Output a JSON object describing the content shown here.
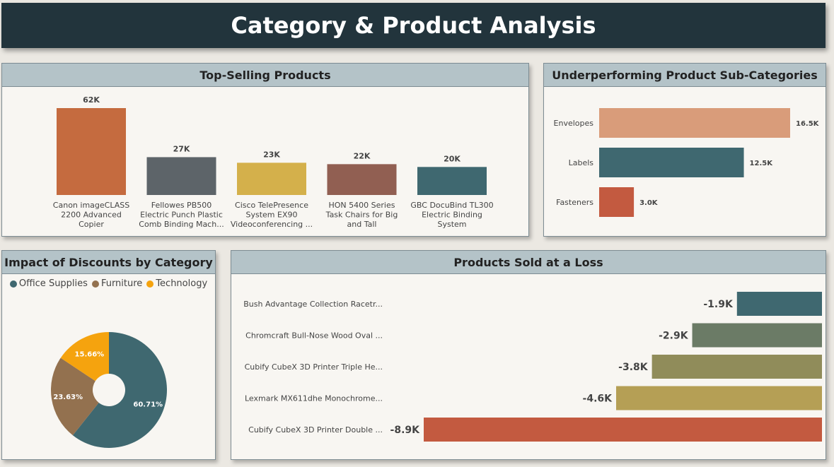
{
  "header": {
    "title": "Category & Product Analysis"
  },
  "panels": {
    "top_selling": {
      "title": "Top-Selling Products"
    },
    "underperforming": {
      "title": "Underperforming Product Sub-Categories"
    },
    "discounts": {
      "title": "Impact of Discounts by Category"
    },
    "loss": {
      "title": "Products Sold at a Loss"
    }
  },
  "chart_data": [
    {
      "id": "top_selling",
      "type": "bar",
      "title": "Top-Selling Products",
      "categories": [
        [
          "Canon imageCLASS",
          "2200 Advanced",
          "Copier"
        ],
        [
          "Fellowes PB500",
          "Electric Punch Plastic",
          "Comb Binding Mach..."
        ],
        [
          "Cisco TelePresence",
          "System EX90",
          "Videoconferencing ..."
        ],
        [
          "HON 5400 Series",
          "Task Chairs for Big",
          "and Tall"
        ],
        [
          "GBC DocuBind TL300",
          "Electric Binding",
          "System"
        ]
      ],
      "values": [
        62000,
        27000,
        23000,
        22000,
        20000
      ],
      "labels": [
        "62K",
        "27K",
        "23K",
        "22K",
        "20K"
      ],
      "colors": [
        "#c56b3f",
        "#5d6469",
        "#d4b04b",
        "#915f52",
        "#3f6870"
      ],
      "ylim": [
        0,
        62000
      ]
    },
    {
      "id": "underperforming",
      "type": "bar",
      "orientation": "horizontal",
      "title": "Underperforming Product Sub-Categories",
      "categories": [
        "Envelopes",
        "Labels",
        "Fasteners"
      ],
      "values": [
        16500,
        12500,
        3000
      ],
      "labels": [
        "16.5K",
        "12.5K",
        "3.0K"
      ],
      "colors": [
        "#d99c7a",
        "#3f6870",
        "#c35a40"
      ],
      "xlim": [
        0,
        16500
      ]
    },
    {
      "id": "discounts",
      "type": "pie",
      "title": "Impact of Discounts by Category",
      "legend": "top",
      "categories": [
        "Office Supplies",
        "Furniture",
        "Technology"
      ],
      "values": [
        60.71,
        23.63,
        15.66
      ],
      "labels": [
        "60.71%",
        "23.63%",
        "15.66%"
      ],
      "colors": [
        "#3f6870",
        "#93714f",
        "#f5a30e"
      ]
    },
    {
      "id": "loss",
      "type": "bar",
      "orientation": "horizontal",
      "title": "Products Sold at a Loss",
      "categories": [
        "Bush Advantage Collection Racetr...",
        "Chromcraft Bull-Nose Wood Oval ...",
        "Cubify CubeX 3D Printer Triple He...",
        "Lexmark MX611dhe Monochrome...",
        "Cubify CubeX 3D Printer Double ..."
      ],
      "values": [
        -1900,
        -2900,
        -3800,
        -4600,
        -8900
      ],
      "labels": [
        "-1.9K",
        "-2.9K",
        "-3.8K",
        "-4.6K",
        "-8.9K"
      ],
      "colors": [
        "#3f6870",
        "#6b7b66",
        "#908c5a",
        "#b59f55",
        "#c35a40"
      ],
      "xlim": [
        -8900,
        0
      ]
    }
  ]
}
